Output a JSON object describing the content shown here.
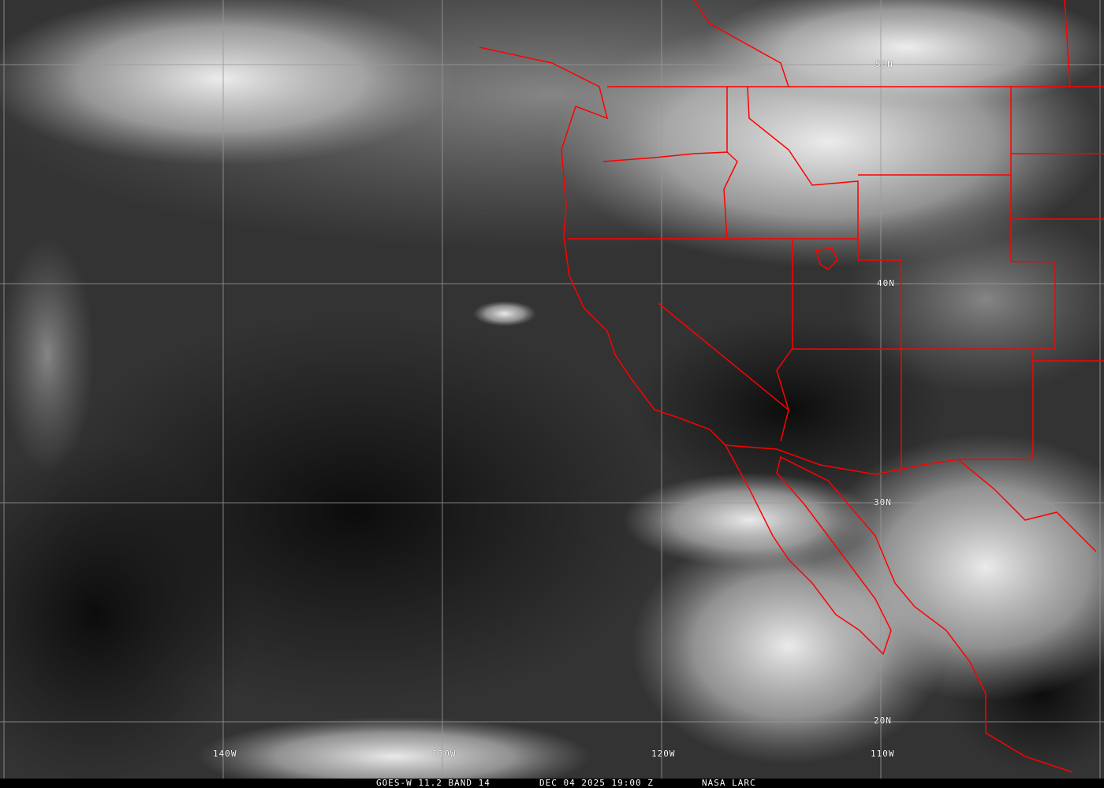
{
  "caption": {
    "satellite": "GOES-W 11.2 BAND 14",
    "datetime": "DEC 04 2025 19:00 Z",
    "source": "NASA LARC"
  },
  "longitude_labels": [
    "140W",
    "130W",
    "120W",
    "110W"
  ],
  "latitude_labels": [
    "50N",
    "40N",
    "30N",
    "20N"
  ],
  "colors": {
    "borders": "#ff0000",
    "grid": "#9a9a9a",
    "caption_text": "#ffffff"
  }
}
